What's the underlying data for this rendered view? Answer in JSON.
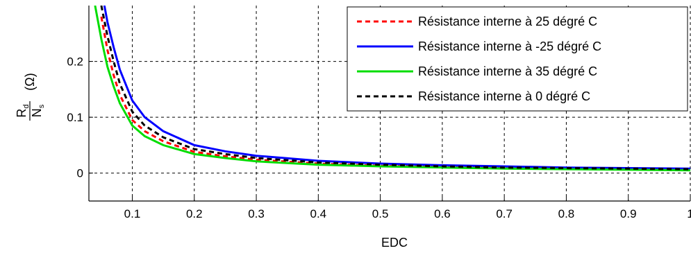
{
  "chart_data": {
    "type": "line",
    "title": "",
    "xlabel": "EDC",
    "ylabel": {
      "numerator": "R",
      "numerator_sub": "d",
      "denominator": "N",
      "denominator_sub": "s",
      "unit": "(Ω)"
    },
    "xlim": [
      0.03,
      1.0
    ],
    "ylim": [
      -0.05,
      0.3
    ],
    "xticks": [
      "0.1",
      "0.2",
      "0.3",
      "0.4",
      "0.5",
      "0.6",
      "0.7",
      "0.8",
      "0.9",
      "1"
    ],
    "yticks": [
      "0",
      "0.1",
      "0.2"
    ],
    "grid": true,
    "legend_position": "top-right",
    "series": [
      {
        "name": "Résistance interne à 25 dégré C",
        "color": "#ff0000",
        "dash": "dashed",
        "points": [
          [
            0.05,
            0.28
          ],
          [
            0.06,
            0.22
          ],
          [
            0.07,
            0.175
          ],
          [
            0.08,
            0.14
          ],
          [
            0.1,
            0.095
          ],
          [
            0.12,
            0.075
          ],
          [
            0.15,
            0.057
          ],
          [
            0.2,
            0.038
          ],
          [
            0.25,
            0.03
          ],
          [
            0.3,
            0.024
          ],
          [
            0.4,
            0.017
          ],
          [
            0.5,
            0.013
          ],
          [
            0.6,
            0.011
          ],
          [
            0.7,
            0.009
          ],
          [
            0.8,
            0.008
          ],
          [
            0.9,
            0.007
          ],
          [
            1.0,
            0.006
          ]
        ]
      },
      {
        "name": "Résistance interne à -25 dégré C",
        "color": "#0000ff",
        "dash": "solid",
        "points": [
          [
            0.055,
            0.3
          ],
          [
            0.06,
            0.27
          ],
          [
            0.07,
            0.225
          ],
          [
            0.08,
            0.185
          ],
          [
            0.1,
            0.13
          ],
          [
            0.12,
            0.1
          ],
          [
            0.15,
            0.075
          ],
          [
            0.2,
            0.05
          ],
          [
            0.25,
            0.039
          ],
          [
            0.3,
            0.031
          ],
          [
            0.4,
            0.022
          ],
          [
            0.5,
            0.017
          ],
          [
            0.6,
            0.014
          ],
          [
            0.7,
            0.012
          ],
          [
            0.8,
            0.01
          ],
          [
            0.9,
            0.009
          ],
          [
            1.0,
            0.008
          ]
        ]
      },
      {
        "name": "Résistance interne à 35 dégré C",
        "color": "#00dd00",
        "dash": "solid",
        "points": [
          [
            0.04,
            0.3
          ],
          [
            0.05,
            0.24
          ],
          [
            0.06,
            0.19
          ],
          [
            0.07,
            0.155
          ],
          [
            0.08,
            0.125
          ],
          [
            0.1,
            0.085
          ],
          [
            0.12,
            0.066
          ],
          [
            0.15,
            0.05
          ],
          [
            0.2,
            0.034
          ],
          [
            0.25,
            0.027
          ],
          [
            0.3,
            0.021
          ],
          [
            0.4,
            0.015
          ],
          [
            0.5,
            0.012
          ],
          [
            0.6,
            0.01
          ],
          [
            0.7,
            0.008
          ],
          [
            0.8,
            0.007
          ],
          [
            0.9,
            0.006
          ],
          [
            1.0,
            0.005
          ]
        ]
      },
      {
        "name": "Résistance interne à 0 dégré C",
        "color": "#000000",
        "dash": "dashed",
        "points": [
          [
            0.05,
            0.3
          ],
          [
            0.06,
            0.245
          ],
          [
            0.07,
            0.2
          ],
          [
            0.08,
            0.16
          ],
          [
            0.1,
            0.11
          ],
          [
            0.12,
            0.085
          ],
          [
            0.15,
            0.064
          ],
          [
            0.2,
            0.043
          ],
          [
            0.25,
            0.034
          ],
          [
            0.3,
            0.027
          ],
          [
            0.4,
            0.019
          ],
          [
            0.5,
            0.015
          ],
          [
            0.6,
            0.012
          ],
          [
            0.7,
            0.01
          ],
          [
            0.8,
            0.009
          ],
          [
            0.9,
            0.008
          ],
          [
            1.0,
            0.007
          ]
        ]
      }
    ]
  }
}
